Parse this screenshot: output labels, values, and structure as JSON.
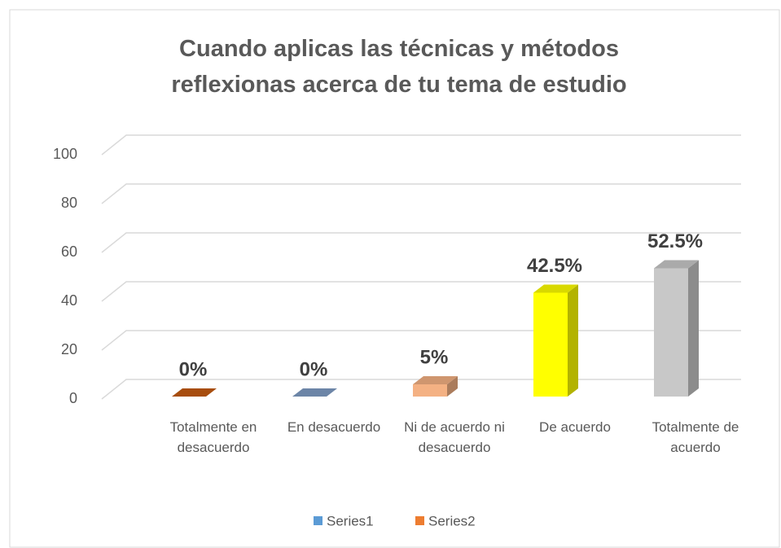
{
  "chart_data": {
    "type": "bar3d",
    "title": "Cuando aplicas las técnicas y métodos reflexionas acerca de tu tema de estudio",
    "categories": [
      "Totalmente en desacuerdo",
      "En desacuerdo",
      "Ni de acuerdo ni desacuerdo",
      "De acuerdo",
      "Totalmente de acuerdo"
    ],
    "values": [
      0,
      0,
      5,
      42.5,
      52.5
    ],
    "value_labels": [
      "0%",
      "0%",
      "5%",
      "42.5%",
      "52.5%"
    ],
    "colors": [
      "#c55a11",
      "#7f9cc4",
      "#f4b183",
      "#ffff00",
      "#c8c8c8"
    ],
    "ylim": [
      0,
      100
    ],
    "yticks": [
      0,
      20,
      40,
      60,
      80,
      100
    ],
    "grid": true,
    "legend": [
      {
        "name": "Series1",
        "color": "#5b9bd5"
      },
      {
        "name": "Series2",
        "color": "#ed7d31"
      }
    ]
  }
}
